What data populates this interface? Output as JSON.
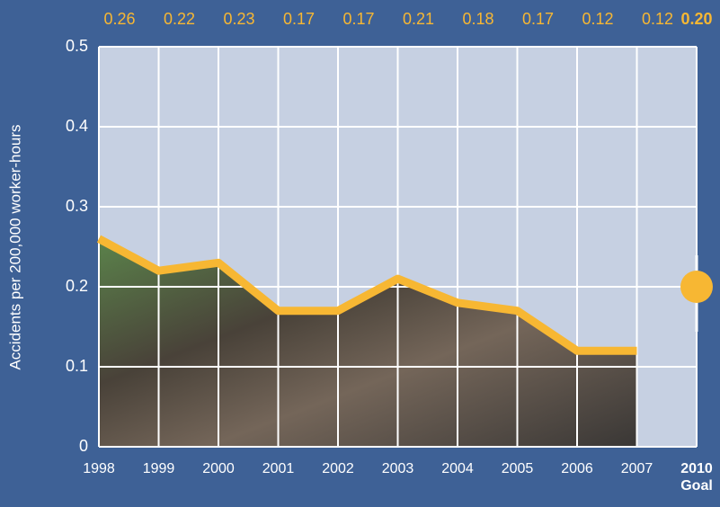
{
  "chart_data": {
    "type": "line",
    "y_label": "Accidents per 200,000 worker-hours",
    "categories": [
      "1998",
      "1999",
      "2000",
      "2001",
      "2002",
      "2003",
      "2004",
      "2005",
      "2006",
      "2007"
    ],
    "values": [
      0.26,
      0.22,
      0.23,
      0.17,
      0.17,
      0.21,
      0.18,
      0.17,
      0.12,
      0.12
    ],
    "value_labels": [
      "0.26",
      "0.22",
      "0.23",
      "0.17",
      "0.17",
      "0.21",
      "0.18",
      "0.17",
      "0.12",
      "0.12"
    ],
    "color": "#f7b733",
    "goal": {
      "category": "2010",
      "sublabel": "Goal",
      "value": 0.2,
      "value_label": "0.20"
    },
    "ylim": [
      0,
      0.5
    ],
    "yticks": [
      0,
      0.1,
      0.2,
      0.3,
      0.4,
      0.5
    ],
    "grid": true
  }
}
